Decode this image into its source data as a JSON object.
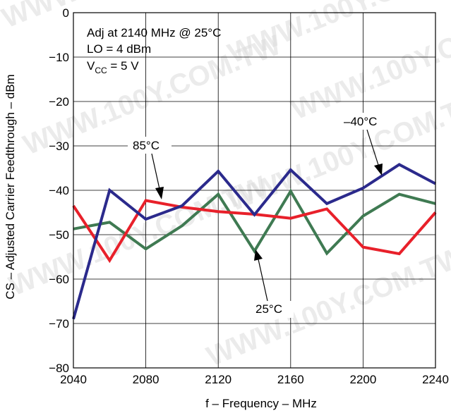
{
  "chart_data": {
    "type": "line",
    "xlabel": "f – Frequency – MHz",
    "ylabel": "CS – Adjusted Carrier Feedthrough – dBm",
    "xlim": [
      2040,
      2240
    ],
    "ylim": [
      -80,
      0
    ],
    "xticks": [
      "2040",
      "2080",
      "2120",
      "2160",
      "2200",
      "2240"
    ],
    "yticks": [
      "0",
      "−10",
      "−20",
      "−30",
      "−40",
      "−50",
      "−60",
      "−70",
      "−80"
    ],
    "grid": true,
    "conditions": {
      "line1": "Adj at 2140 MHz @ 25°C",
      "line2": "LO = 4 dBm",
      "line3_main": "V",
      "line3_sub": "CC",
      "line3_rest": " =  5 V"
    },
    "x": [
      2040,
      2060,
      2080,
      2100,
      2120,
      2140,
      2160,
      2180,
      2200,
      2220,
      2240
    ],
    "series": [
      {
        "name": "−40°C",
        "label": "–40°C",
        "color": "#2b2a8c",
        "values": [
          -69,
          -40,
          -46.5,
          -43.5,
          -35.7,
          -45.5,
          -35.4,
          -43,
          -39.5,
          -34.2,
          -38.5
        ]
      },
      {
        "name": "85°C",
        "label": "85°C",
        "color": "#e8202a",
        "values": [
          -43.5,
          -55.8,
          -42.3,
          -43.8,
          -44.8,
          -45.4,
          -46.3,
          -44.2,
          -52.8,
          -54.3,
          -45
        ]
      },
      {
        "name": "25°C",
        "label": "25°C",
        "color": "#3f7a52",
        "values": [
          -48.7,
          -47.2,
          -53.2,
          -48,
          -40.9,
          -53.7,
          -40.2,
          -54.2,
          -45.8,
          -40.9,
          -43
        ]
      }
    ]
  },
  "watermark": "WWW.100Y.COM.TW"
}
